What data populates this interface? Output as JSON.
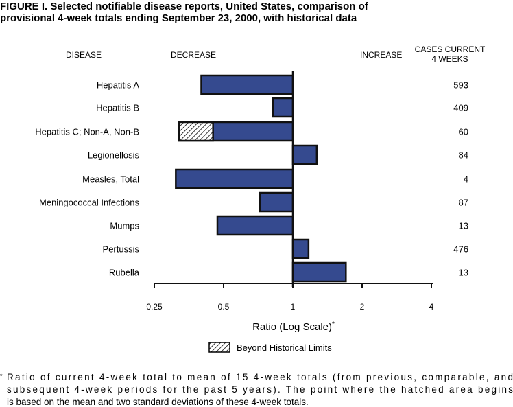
{
  "title_line1": "FIGURE I. Selected notifiable disease reports, United States, comparison of",
  "title_line2": "provisional 4-week totals ending September 23, 2000, with historical data",
  "headers": {
    "disease": "DISEASE",
    "decrease": "DECREASE",
    "increase": "INCREASE",
    "cases1": "CASES CURRENT",
    "cases2": "4 WEEKS"
  },
  "legend": {
    "hatched": "Beyond Historical Limits"
  },
  "footnote": {
    "line1": "Ratio of current 4-week total to mean of 15 4-week totals (from previous, comparable, and",
    "line2": "subsequent 4-week periods for the past 5 years). The point where the hatched area begins",
    "line3": "is based on the mean and two standard deviations of these 4-week totals.",
    "marker": "*"
  },
  "chart_data": {
    "type": "bar",
    "orientation": "horizontal",
    "xlabel": "Ratio (Log Scale)",
    "xlabel_marker": "*",
    "xscale": "log2",
    "xlim": [
      0.25,
      4
    ],
    "xticks": [
      "0.25",
      "0.5",
      "1",
      "2",
      "4"
    ],
    "baseline": 1,
    "bar_color": "#354a8f",
    "categories": [
      "Hepatitis A",
      "Hepatitis B",
      "Hepatitis C; Non-A, Non-B",
      "Legionellosis",
      "Measles, Total",
      "Meningococcal Infections",
      "Mumps",
      "Pertussis",
      "Rubella"
    ],
    "values": [
      0.4,
      0.82,
      0.32,
      1.27,
      0.31,
      0.72,
      0.47,
      1.17,
      1.7
    ],
    "historical_limit": [
      null,
      null,
      0.45,
      null,
      null,
      null,
      null,
      null,
      null
    ],
    "cases": [
      "593",
      "409",
      "60",
      "84",
      "4",
      "87",
      "13",
      "476",
      "13"
    ]
  }
}
